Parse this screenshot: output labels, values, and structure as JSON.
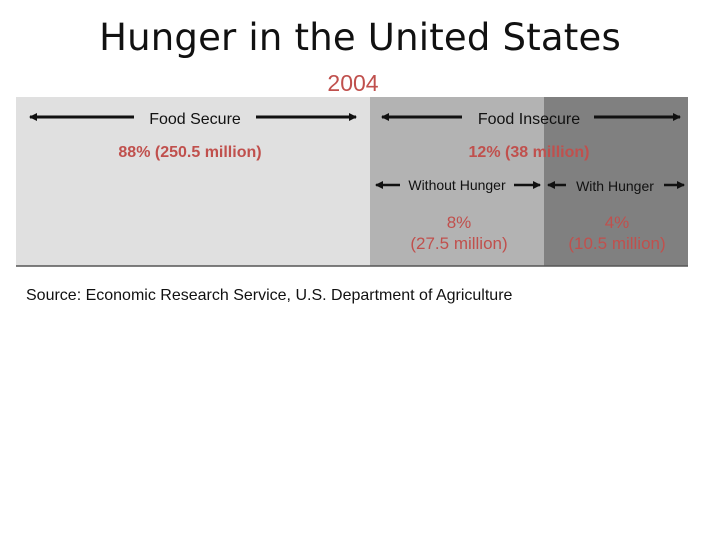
{
  "slide": {
    "title": "Hunger in the United States",
    "subtitle": "2004",
    "source": "Source: Economic Research Service, U.S. Department of Agriculture"
  },
  "diagram": {
    "food_secure": {
      "label": "Food Secure",
      "value": "88% (250.5 million)",
      "color": "#e0e0e0"
    },
    "food_insecure": {
      "label": "Food Insecure",
      "value": "12% (38 million)",
      "color": "#b3b3b3"
    },
    "without_hunger": {
      "label": "Without Hunger",
      "pct": "8%",
      "value": "(27.5 million)",
      "color": "#b3b3b3"
    },
    "with_hunger": {
      "label": "With Hunger",
      "pct": "4%",
      "value": "(10.5 million)",
      "color": "#808080"
    },
    "value_color": "#c0504d"
  }
}
